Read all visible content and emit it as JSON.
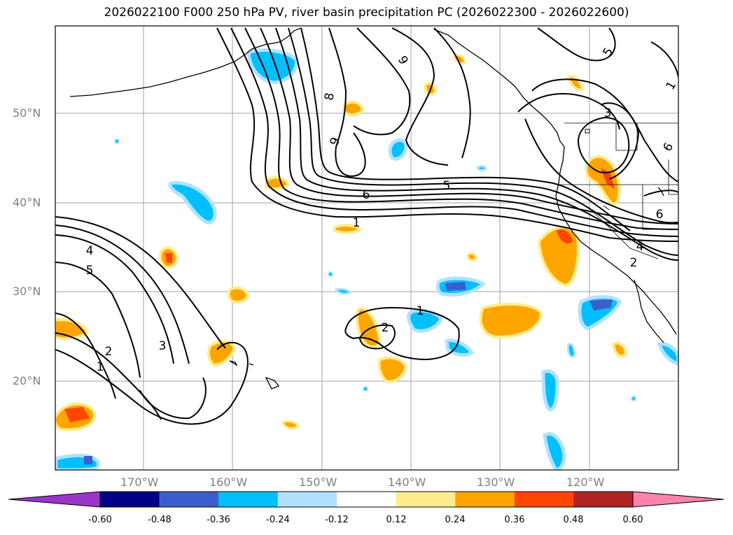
{
  "title": "2026022100 F000 250 hPa PV, river basin precipitation PC (2026022300 - 2026022600)",
  "lat_labels": [
    "50°N",
    "40°N",
    "30°N",
    "20°N"
  ],
  "lon_labels": [
    "170°W",
    "160°W",
    "150°W",
    "140°W",
    "130°W",
    "120°W"
  ],
  "contour_labels": [
    "9",
    "8",
    "9",
    "6",
    "5",
    "1",
    "4",
    "5",
    "2",
    "3",
    "1",
    "1",
    "2",
    "5",
    "3",
    "6",
    "6",
    "4",
    "2",
    "1"
  ],
  "colorbar": {
    "ticks": [
      "-0.60",
      "-0.48",
      "-0.36",
      "-0.24",
      "-0.12",
      "0.12",
      "0.24",
      "0.36",
      "0.48",
      "0.60"
    ],
    "colors": [
      "#9a35c9",
      "#00008b",
      "#3a5fcd",
      "#00bfff",
      "#b0e2ff",
      "#ffffff",
      "#ffec8b",
      "#ffa500",
      "#ff4500",
      "#b22222",
      "#ff82ab"
    ]
  }
}
